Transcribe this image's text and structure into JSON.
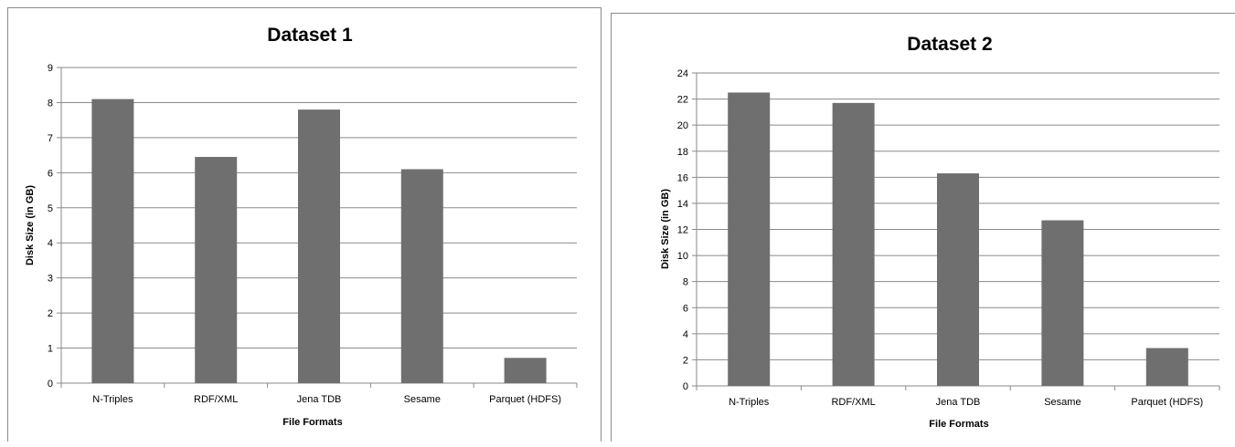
{
  "chart_data": [
    {
      "type": "bar",
      "title": "Dataset 1",
      "xlabel": "File Formats",
      "ylabel": "Disk Size (in GB)",
      "categories": [
        "N-Triples",
        "RDF/XML",
        "Jena TDB",
        "Sesame",
        "Parquet (HDFS)"
      ],
      "values": [
        8.1,
        6.45,
        7.8,
        6.1,
        0.72
      ],
      "ylim": [
        0,
        9
      ],
      "yticks": [
        "0",
        "1",
        "2",
        "3",
        "4",
        "5",
        "6",
        "7",
        "8",
        "9"
      ],
      "grid": true,
      "bar_color": "#6f6f6f"
    },
    {
      "type": "bar",
      "title": "Dataset 2",
      "xlabel": "File Formats",
      "ylabel": "Disk Size (in GB)",
      "categories": [
        "N-Triples",
        "RDF/XML",
        "Jena TDB",
        "Sesame",
        "Parquet (HDFS)"
      ],
      "values": [
        22.5,
        21.7,
        16.3,
        12.7,
        2.9
      ],
      "ylim": [
        0,
        24
      ],
      "yticks": [
        "0",
        "2",
        "4",
        "6",
        "8",
        "10",
        "12",
        "14",
        "16",
        "18",
        "20",
        "22",
        "24"
      ],
      "grid": true,
      "bar_color": "#6f6f6f"
    }
  ]
}
